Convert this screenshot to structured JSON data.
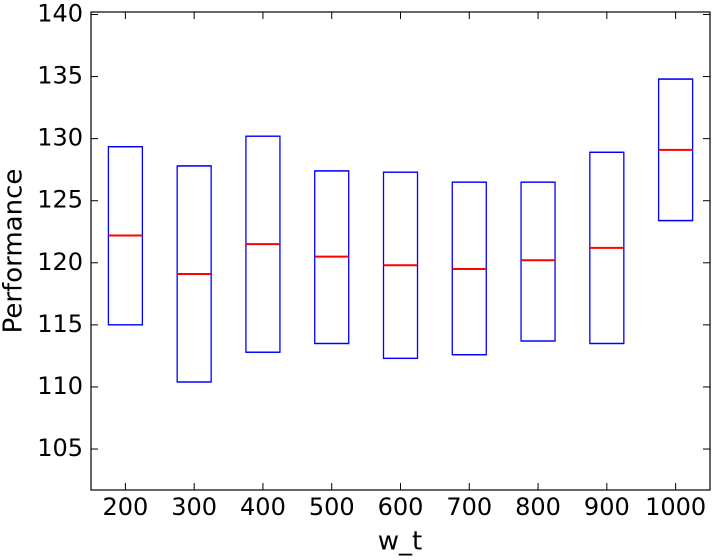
{
  "chart_data": {
    "type": "box",
    "xlabel": "w_t",
    "ylabel": "Performance",
    "categories": [
      "200",
      "300",
      "400",
      "500",
      "600",
      "700",
      "800",
      "900",
      "1000"
    ],
    "q1": [
      115.0,
      110.4,
      112.8,
      113.5,
      112.3,
      112.6,
      113.7,
      113.5,
      123.4
    ],
    "median": [
      122.2,
      119.1,
      121.5,
      120.5,
      119.8,
      119.5,
      120.2,
      121.2,
      129.1
    ],
    "q3": [
      129.35,
      127.8,
      130.2,
      127.4,
      127.3,
      126.5,
      126.5,
      128.9,
      134.8
    ],
    "box_color": "#0000ff",
    "median_color": "#ff0000",
    "ylim": [
      101.7,
      140.2
    ],
    "yticks": [
      105,
      110,
      115,
      120,
      125,
      130,
      135,
      140
    ]
  }
}
